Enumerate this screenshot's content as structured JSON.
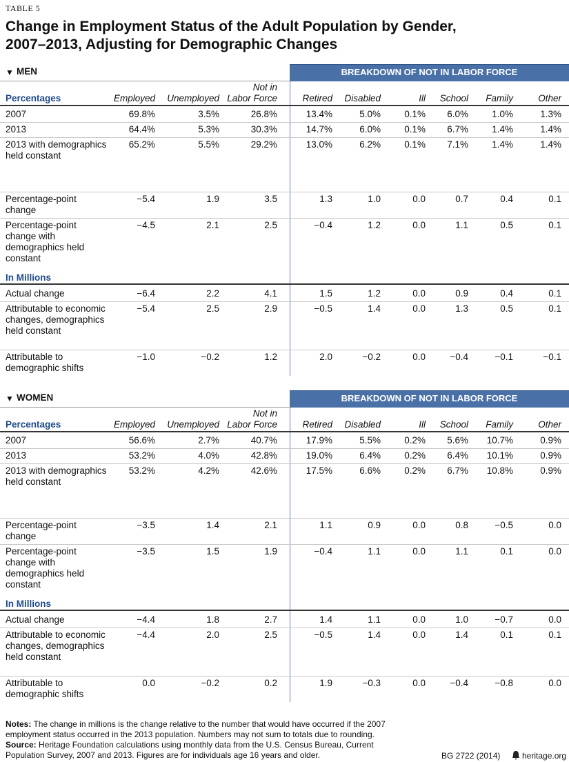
{
  "table_label": "TABLE 5",
  "title": "Change in Employment Status of the Adult Population by Gender,\n2007–2013, Adjusting for Demographic Changes",
  "sections": [
    {
      "name": "MEN",
      "breakdown_header": "BREAKDOWN OF NOT IN LABOR FORCE",
      "columns": [
        "Employed",
        "Unemployed",
        "Not in\nLabor Force",
        "Retired",
        "Disabled",
        "Ill",
        "School",
        "Family",
        "Other"
      ],
      "groups": [
        {
          "label": "Percentages",
          "rows": [
            {
              "label": "2007",
              "cells": [
                "69.8%",
                "3.5%",
                "26.8%",
                "13.4%",
                "5.0%",
                "0.1%",
                "6.0%",
                "1.0%",
                "1.3%"
              ]
            },
            {
              "label": "2013",
              "cells": [
                "64.4%",
                "5.3%",
                "30.3%",
                "14.7%",
                "6.0%",
                "0.1%",
                "6.7%",
                "1.4%",
                "1.4%"
              ]
            },
            {
              "label": "2013 with demographics held constant",
              "cells": [
                "65.2%",
                "5.5%",
                "29.2%",
                "13.0%",
                "6.2%",
                "0.1%",
                "7.1%",
                "1.4%",
                "1.4%"
              ]
            },
            {
              "label": "Percentage-point change",
              "cells": [
                "−5.4",
                "1.9",
                "3.5",
                "1.3",
                "1.0",
                "0.0",
                "0.7",
                "0.4",
                "0.1"
              ]
            },
            {
              "label": "Percentage-point change with demographics held constant",
              "cells": [
                "−4.5",
                "2.1",
                "2.5",
                "−0.4",
                "1.2",
                "0.0",
                "1.1",
                "0.5",
                "0.1"
              ]
            }
          ]
        },
        {
          "label": "In Millions",
          "rows": [
            {
              "label": "Actual change",
              "cells": [
                "−6.4",
                "2.2",
                "4.1",
                "1.5",
                "1.2",
                "0.0",
                "0.9",
                "0.4",
                "0.1"
              ]
            },
            {
              "label": "Attributable to economic changes, demographics held constant",
              "cells": [
                "−5.4",
                "2.5",
                "2.9",
                "−0.5",
                "1.4",
                "0.0",
                "1.3",
                "0.5",
                "0.1"
              ]
            },
            {
              "label": "Attributable to demographic shifts",
              "cells": [
                "−1.0",
                "−0.2",
                "1.2",
                "2.0",
                "−0.2",
                "0.0",
                "−0.4",
                "−0.1",
                "−0.1"
              ]
            }
          ]
        }
      ]
    },
    {
      "name": "WOMEN",
      "breakdown_header": "BREAKDOWN OF NOT IN LABOR FORCE",
      "columns": [
        "Employed",
        "Unemployed",
        "Not in\nLabor Force",
        "Retired",
        "Disabled",
        "Ill",
        "School",
        "Family",
        "Other"
      ],
      "groups": [
        {
          "label": "Percentages",
          "rows": [
            {
              "label": "2007",
              "cells": [
                "56.6%",
                "2.7%",
                "40.7%",
                "17.9%",
                "5.5%",
                "0.2%",
                "5.6%",
                "10.7%",
                "0.9%"
              ]
            },
            {
              "label": "2013",
              "cells": [
                "53.2%",
                "4.0%",
                "42.8%",
                "19.0%",
                "6.4%",
                "0.2%",
                "6.4%",
                "10.1%",
                "0.9%"
              ]
            },
            {
              "label": "2013 with demographics held constant",
              "cells": [
                "53.2%",
                "4.2%",
                "42.6%",
                "17.5%",
                "6.6%",
                "0.2%",
                "6.7%",
                "10.8%",
                "0.9%"
              ]
            },
            {
              "label": "Percentage-point change",
              "cells": [
                "−3.5",
                "1.4",
                "2.1",
                "1.1",
                "0.9",
                "0.0",
                "0.8",
                "−0.5",
                "0.0"
              ]
            },
            {
              "label": "Percentage-point change with demographics held constant",
              "cells": [
                "−3.5",
                "1.5",
                "1.9",
                "−0.4",
                "1.1",
                "0.0",
                "1.1",
                "0.1",
                "0.0"
              ]
            }
          ]
        },
        {
          "label": "In Millions",
          "rows": [
            {
              "label": "Actual change",
              "cells": [
                "−4.4",
                "1.8",
                "2.7",
                "1.4",
                "1.1",
                "0.0",
                "1.0",
                "−0.7",
                "0.0"
              ]
            },
            {
              "label": "Attributable to economic changes, demographics held constant",
              "cells": [
                "−4.4",
                "2.0",
                "2.5",
                "−0.5",
                "1.4",
                "0.0",
                "1.4",
                "0.1",
                "0.1"
              ]
            },
            {
              "label": "Attributable to demographic shifts",
              "cells": [
                "0.0",
                "−0.2",
                "0.2",
                "1.9",
                "−0.3",
                "0.0",
                "−0.4",
                "−0.8",
                "0.0"
              ]
            }
          ]
        }
      ]
    }
  ],
  "notes": {
    "label": "Notes:",
    "text": "The change in millions is the change relative to the number that would have occurred if the 2007 employment status occurred in the 2013 population. Numbers may not sum to totals due to rounding."
  },
  "source": {
    "label": "Source:",
    "text": "Heritage Foundation calculations using monthly data from the U.S. Census Bureau, Current Population Survey, 2007 and 2013. Figures are for individuals age 16 years and older."
  },
  "footer": {
    "code": "BG 2722 (2014)",
    "site": "heritage.org"
  }
}
